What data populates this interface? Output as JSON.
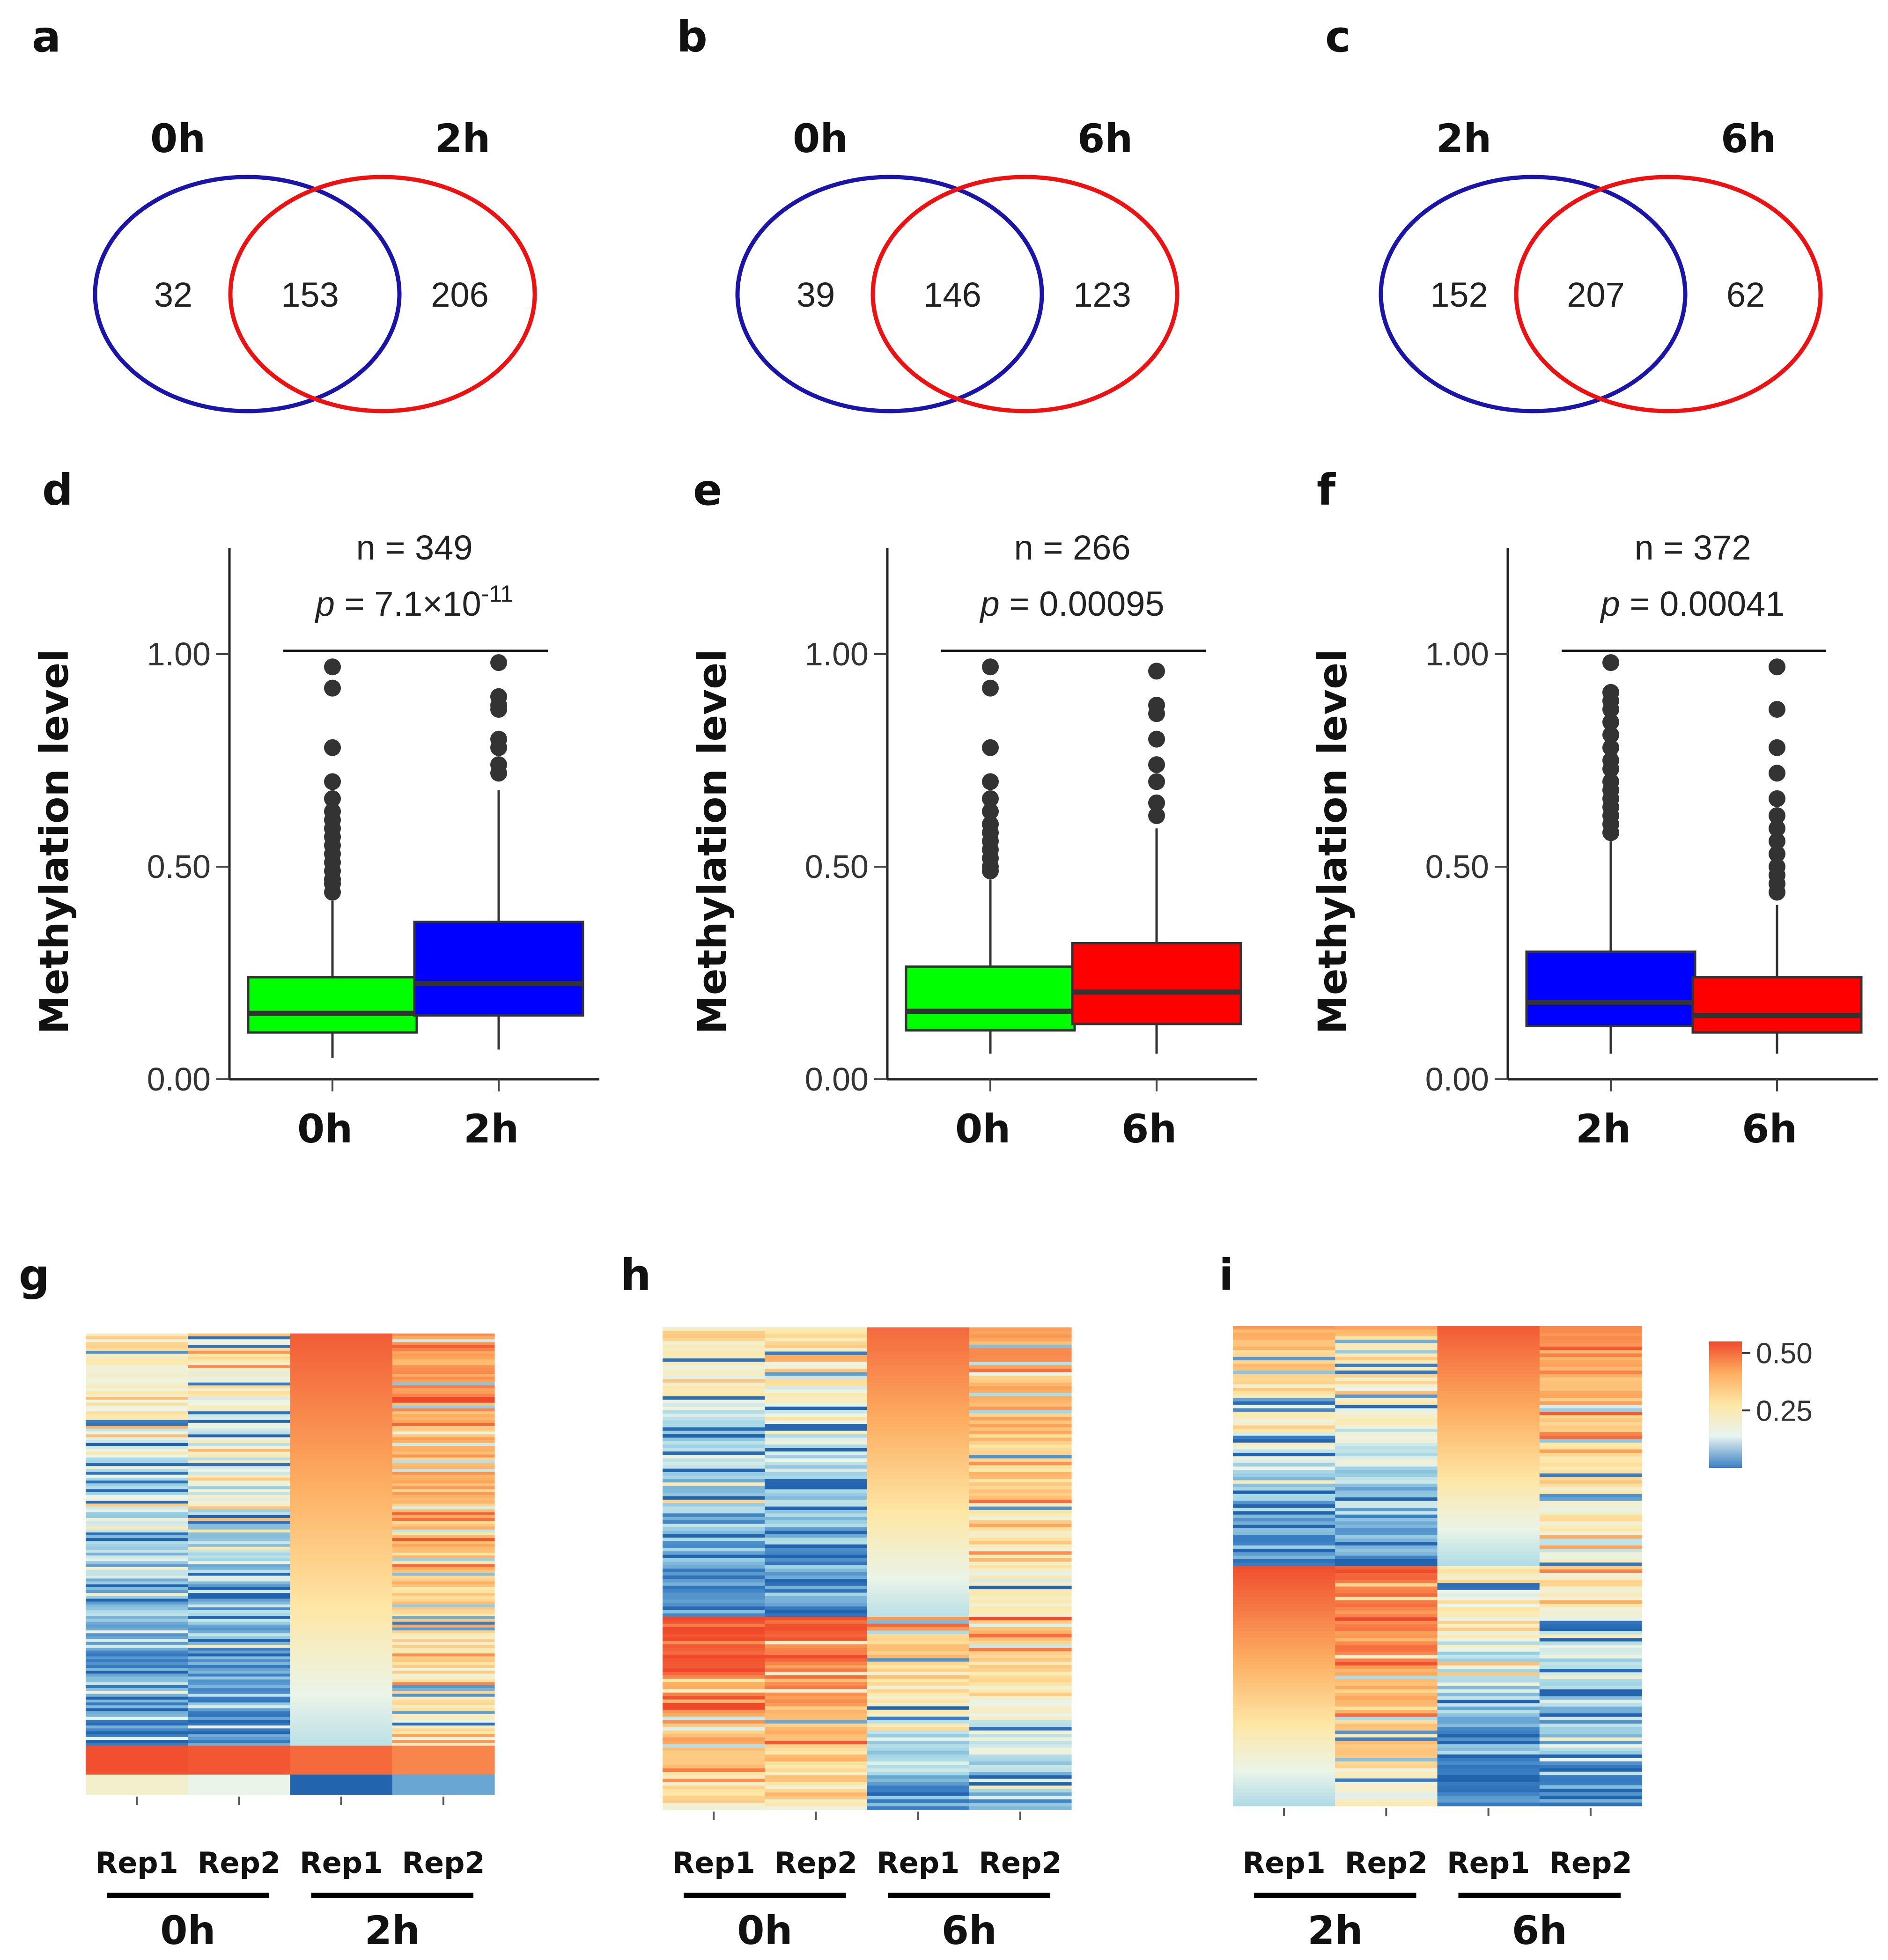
{
  "chart_data": [
    {
      "type": "venn",
      "panel": "a",
      "set_labels": [
        "0h",
        "2h"
      ],
      "left_only": 32,
      "overlap": 153,
      "right_only": 206,
      "colors": [
        "#1a14a8",
        "#ee1111"
      ]
    },
    {
      "type": "venn",
      "panel": "b",
      "set_labels": [
        "0h",
        "6h"
      ],
      "left_only": 39,
      "overlap": 146,
      "right_only": 123,
      "colors": [
        "#1a14a8",
        "#ee1111"
      ]
    },
    {
      "type": "venn",
      "panel": "c",
      "set_labels": [
        "2h",
        "6h"
      ],
      "left_only": 152,
      "overlap": 207,
      "right_only": 62,
      "colors": [
        "#1a14a8",
        "#ee1111"
      ]
    },
    {
      "type": "boxplot",
      "panel": "d",
      "ylabel": "Methylation level",
      "ylim": [
        0,
        1.25
      ],
      "yticks": [
        "0.00",
        "0.50",
        "1.00"
      ],
      "n_text": "n = 349",
      "p_label": "p",
      "p_text": " = 7.1×10",
      "p_exp": "-11",
      "categories": [
        "0h",
        "2h"
      ],
      "boxes": [
        {
          "q1": 0.11,
          "median": 0.155,
          "q3": 0.24,
          "whisker_low": 0.05,
          "whisker_high": 0.42,
          "color": "#00ff00",
          "outliers": [
            0.97,
            0.92,
            0.78,
            0.7,
            0.66,
            0.63,
            0.61,
            0.59,
            0.57,
            0.55,
            0.53,
            0.51,
            0.49,
            0.47,
            0.46,
            0.44
          ]
        },
        {
          "q1": 0.15,
          "median": 0.225,
          "q3": 0.37,
          "whisker_low": 0.07,
          "whisker_high": 0.68,
          "color": "#0000ff",
          "outliers": [
            0.98,
            0.9,
            0.88,
            0.87,
            0.8,
            0.78,
            0.74,
            0.72
          ]
        }
      ]
    },
    {
      "type": "boxplot",
      "panel": "e",
      "ylabel": "Methylation level",
      "ylim": [
        0,
        1.25
      ],
      "yticks": [
        "0.00",
        "0.50",
        "1.00"
      ],
      "n_text": "n = 266",
      "p_label": "p",
      "p_text": " = 0.00095",
      "p_exp": "",
      "categories": [
        "0h",
        "6h"
      ],
      "boxes": [
        {
          "q1": 0.115,
          "median": 0.16,
          "q3": 0.265,
          "whisker_low": 0.06,
          "whisker_high": 0.47,
          "color": "#00ff00",
          "outliers": [
            0.97,
            0.92,
            0.78,
            0.7,
            0.66,
            0.63,
            0.6,
            0.58,
            0.56,
            0.54,
            0.52,
            0.5,
            0.49
          ]
        },
        {
          "q1": 0.13,
          "median": 0.205,
          "q3": 0.32,
          "whisker_low": 0.06,
          "whisker_high": 0.59,
          "color": "#ff0000",
          "outliers": [
            0.96,
            0.88,
            0.86,
            0.8,
            0.74,
            0.7,
            0.65,
            0.62
          ]
        }
      ]
    },
    {
      "type": "boxplot",
      "panel": "f",
      "ylabel": "Methylation level",
      "ylim": [
        0,
        1.25
      ],
      "yticks": [
        "0.00",
        "0.50",
        "1.00"
      ],
      "n_text": "n = 372",
      "p_label": "p",
      "p_text": " = 0.00041",
      "p_exp": "",
      "categories": [
        "2h",
        "6h"
      ],
      "boxes": [
        {
          "q1": 0.125,
          "median": 0.18,
          "q3": 0.3,
          "whisker_low": 0.06,
          "whisker_high": 0.56,
          "color": "#0000ff",
          "outliers": [
            0.98,
            0.91,
            0.89,
            0.87,
            0.84,
            0.81,
            0.78,
            0.75,
            0.73,
            0.7,
            0.68,
            0.66,
            0.64,
            0.62,
            0.6,
            0.58
          ]
        },
        {
          "q1": 0.11,
          "median": 0.15,
          "q3": 0.24,
          "whisker_low": 0.06,
          "whisker_high": 0.41,
          "color": "#ff0000",
          "outliers": [
            0.97,
            0.87,
            0.78,
            0.72,
            0.66,
            0.62,
            0.59,
            0.56,
            0.53,
            0.5,
            0.48,
            0.46,
            0.44
          ]
        }
      ]
    },
    {
      "type": "heatmap",
      "panel": "g",
      "columns": [
        "Rep1",
        "Rep2",
        "Rep1",
        "Rep2"
      ],
      "groups": [
        "0h",
        "2h"
      ],
      "rows": 160,
      "segments": [
        {
          "fraction": 0.893,
          "cols": [
            {
              "mode": "noisy",
              "from": 0.3,
              "to": 0.07
            },
            {
              "mode": "noisy",
              "from": 0.3,
              "to": 0.08
            },
            {
              "mode": "smooth",
              "from": 0.52,
              "to": 0.19
            },
            {
              "mode": "noisy",
              "from": 0.44,
              "to": 0.27
            }
          ]
        },
        {
          "fraction": 0.061,
          "cols": [
            {
              "mode": "smooth",
              "from": 0.54,
              "to": 0.54
            },
            {
              "mode": "smooth",
              "from": 0.53,
              "to": 0.53
            },
            {
              "mode": "smooth",
              "from": 0.5,
              "to": 0.5
            },
            {
              "mode": "smooth",
              "from": 0.46,
              "to": 0.46
            }
          ]
        },
        {
          "fraction": 0.046,
          "cols": [
            {
              "mode": "smooth",
              "from": 0.26,
              "to": 0.26
            },
            {
              "mode": "smooth",
              "from": 0.23,
              "to": 0.23
            },
            {
              "mode": "smooth",
              "from": 0.0,
              "to": 0.0
            },
            {
              "mode": "smooth",
              "from": 0.12,
              "to": 0.12
            }
          ]
        }
      ]
    },
    {
      "type": "heatmap",
      "panel": "h",
      "columns": [
        "Rep1",
        "Rep2",
        "Rep1",
        "Rep2"
      ],
      "groups": [
        "0h",
        "6h"
      ],
      "rows": 140,
      "segments": [
        {
          "fraction": 0.6,
          "cols": [
            {
              "mode": "noisy",
              "from": 0.3,
              "to": 0.06
            },
            {
              "mode": "noisy",
              "from": 0.3,
              "to": 0.07
            },
            {
              "mode": "smooth",
              "from": 0.5,
              "to": 0.19
            },
            {
              "mode": "noisy",
              "from": 0.42,
              "to": 0.25
            }
          ]
        },
        {
          "fraction": 0.4,
          "cols": [
            {
              "mode": "noisy",
              "from": 0.54,
              "to": 0.28
            },
            {
              "mode": "noisy",
              "from": 0.5,
              "to": 0.29
            },
            {
              "mode": "noisy",
              "from": 0.4,
              "to": 0.1
            },
            {
              "mode": "noisy",
              "from": 0.4,
              "to": 0.12
            }
          ]
        }
      ]
    },
    {
      "type": "heatmap",
      "panel": "i",
      "columns": [
        "Rep1",
        "Rep2",
        "Rep1",
        "Rep2"
      ],
      "groups": [
        "2h",
        "6h"
      ],
      "rows": 140,
      "segments": [
        {
          "fraction": 0.5,
          "cols": [
            {
              "mode": "noisy",
              "from": 0.38,
              "to": 0.08
            },
            {
              "mode": "noisy",
              "from": 0.36,
              "to": 0.08
            },
            {
              "mode": "smooth",
              "from": 0.52,
              "to": 0.18
            },
            {
              "mode": "noisy",
              "from": 0.46,
              "to": 0.22
            }
          ]
        },
        {
          "fraction": 0.5,
          "cols": [
            {
              "mode": "smooth",
              "from": 0.54,
              "to": 0.18
            },
            {
              "mode": "noisy",
              "from": 0.52,
              "to": 0.26
            },
            {
              "mode": "noisy",
              "from": 0.3,
              "to": 0.07
            },
            {
              "mode": "noisy",
              "from": 0.3,
              "to": 0.07
            }
          ]
        }
      ]
    }
  ],
  "legend": {
    "title": "",
    "ticks": [
      "0.50",
      "0.25"
    ],
    "tick_values": [
      0.5,
      0.25
    ],
    "range": [
      0,
      0.55
    ],
    "colors": [
      "#3a7fc4",
      "#e8f4f0",
      "#fde7a6",
      "#fdae61",
      "#f0492b"
    ]
  }
}
